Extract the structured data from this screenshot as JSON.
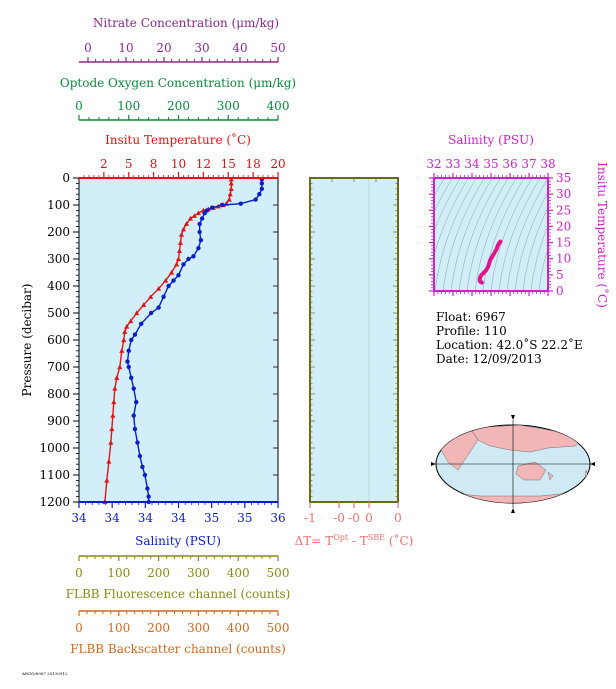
{
  "colors": {
    "nitrate": "#8b2a8b",
    "oxygen": "#0a8a3a",
    "temperature": "#e01515",
    "salinity": "#0a1ec8",
    "ts_axis": "#cc22cc",
    "ts_curve": "#e0148c",
    "delta_t": "#f07070",
    "fluorescence": "#8a8a1a",
    "backscatter": "#d2691e",
    "panel_fill": "#d2eef8",
    "land": "#f2b6b6",
    "ocean": "#cfeaf4"
  },
  "axes": {
    "nitrate": {
      "title": "Nitrate Concentration (μm/kg)",
      "ticks": [
        "0",
        "10",
        "20",
        "30",
        "40",
        "50"
      ]
    },
    "oxygen": {
      "title": "Optode Oxygen Concentration (μm/kg)",
      "ticks": [
        "0",
        "100",
        "200",
        "300",
        "400"
      ]
    },
    "temperature": {
      "title": "Insitu Temperature (˚C)",
      "ticks": [
        "2",
        "5",
        "8",
        "10",
        "12",
        "15",
        "18",
        "20"
      ]
    },
    "pressure": {
      "title": "Pressure (decibar)",
      "ticks": [
        "0",
        "100",
        "200",
        "300",
        "400",
        "500",
        "600",
        "700",
        "800",
        "900",
        "1000",
        "1100",
        "1200"
      ]
    },
    "salinity": {
      "title": "Salinity (PSU)",
      "ticks": [
        "34",
        "34",
        "34",
        "34",
        "35",
        "35",
        "36"
      ]
    },
    "delta_t": {
      "title": "ΔT= T",
      "sup1": "Opt",
      "mid": " - T",
      "sup2": "SBE",
      "tail": " (˚C)",
      "ticks": [
        "-1",
        "-0",
        "-0",
        "0",
        "0"
      ]
    },
    "fluorescence": {
      "title": "FLBB Fluorescence channel (counts)",
      "ticks": [
        "0",
        "100",
        "200",
        "300",
        "400",
        "500"
      ]
    },
    "backscatter": {
      "title": "FLBB Backscatter channel (counts)",
      "ticks": [
        "0",
        "100",
        "200",
        "300",
        "400",
        "500"
      ]
    },
    "ts_salinity": {
      "title": "Salinity (PSU)",
      "ticks": [
        "32",
        "33",
        "34",
        "35",
        "36",
        "37",
        "38"
      ]
    },
    "ts_temperature": {
      "title": "Insitu Temperature (˚C)",
      "ticks": [
        "0",
        "5",
        "10",
        "15",
        "20",
        "25",
        "30",
        "35"
      ]
    }
  },
  "info": {
    "float": "Float:  6967",
    "profile": "Profile:  110",
    "location": "Location:  42.0˚S  22.2˚E",
    "date": "Date:  12/09/2013"
  },
  "footer": "ARGO/6967 20130912",
  "chart_data": [
    {
      "type": "line",
      "title": "Insitu Temperature (˚C)",
      "xlabel": "Insitu Temperature (˚C)",
      "ylabel": "Pressure (decibar)",
      "xlim": [
        0,
        20
      ],
      "ylim": [
        1200,
        0
      ],
      "series": [
        {
          "x": [
            15.3,
            15.3,
            15.3,
            15.2,
            15.1,
            14.8,
            14.5,
            14.0,
            13.5,
            13.0,
            12.5,
            12.0,
            11.6,
            11.2,
            10.8,
            10.5,
            10.3,
            10.2,
            10.1,
            10.0,
            9.8,
            9.3,
            8.7,
            8.0,
            7.2,
            6.5,
            5.8,
            5.2,
            4.8,
            4.6,
            4.5,
            4.3,
            4.1,
            3.8,
            3.6,
            3.5,
            3.4,
            3.3,
            3.2,
            3.0,
            2.8,
            2.6
          ],
          "y": [
            5,
            20,
            40,
            60,
            80,
            95,
            100,
            105,
            110,
            115,
            120,
            130,
            140,
            150,
            170,
            190,
            210,
            240,
            270,
            300,
            320,
            350,
            380,
            410,
            440,
            470,
            500,
            530,
            550,
            570,
            600,
            640,
            700,
            740,
            780,
            830,
            880,
            930,
            980,
            1050,
            1120,
            1200
          ]
        }
      ]
    },
    {
      "type": "line",
      "title": "Salinity (PSU)",
      "xlabel": "Salinity (PSU)",
      "ylabel": "Pressure (decibar)",
      "ylim": [
        1200,
        0
      ],
      "series": [
        {
          "x": [
            35.47,
            35.47,
            35.47,
            35.45,
            35.42,
            35.3,
            35.15,
            35.07,
            35.03,
            35.01,
            34.99,
            34.97,
            34.97,
            34.98,
            34.96,
            34.92,
            34.88,
            34.84,
            34.8,
            34.76,
            34.72,
            34.68,
            34.64,
            34.58,
            34.5,
            34.45,
            34.42,
            34.4,
            34.39,
            34.4,
            34.42,
            34.44,
            34.46,
            34.44,
            34.45,
            34.47,
            34.49,
            34.51,
            34.53,
            34.55,
            34.56,
            34.56
          ],
          "y": [
            5,
            20,
            40,
            60,
            80,
            95,
            100,
            110,
            120,
            130,
            150,
            170,
            200,
            230,
            260,
            290,
            300,
            320,
            360,
            380,
            400,
            440,
            480,
            500,
            540,
            580,
            600,
            640,
            680,
            700,
            740,
            780,
            830,
            880,
            930,
            980,
            1030,
            1070,
            1100,
            1150,
            1180,
            1200
          ]
        }
      ]
    },
    {
      "type": "line",
      "title": "Salinity (PSU)",
      "xlabel": "Salinity (PSU)",
      "ylabel": "Insitu Temperature (˚C)",
      "xlim": [
        32,
        38
      ],
      "ylim": [
        0,
        35
      ],
      "series": [
        {
          "x": [
            35.5,
            35.45,
            35.35,
            35.3,
            35.2,
            35.1,
            35.05,
            35.0,
            34.95,
            34.9,
            34.85,
            34.75,
            34.6,
            34.5,
            34.45,
            34.42,
            34.4,
            34.42,
            34.45,
            34.5,
            34.52
          ],
          "y": [
            15.3,
            15.0,
            14.0,
            13.0,
            12.0,
            11.0,
            10.5,
            10.0,
            9.5,
            8.5,
            7.5,
            6.5,
            5.5,
            5.0,
            4.5,
            4.0,
            3.5,
            3.0,
            2.8,
            2.7,
            2.6
          ]
        }
      ]
    }
  ]
}
